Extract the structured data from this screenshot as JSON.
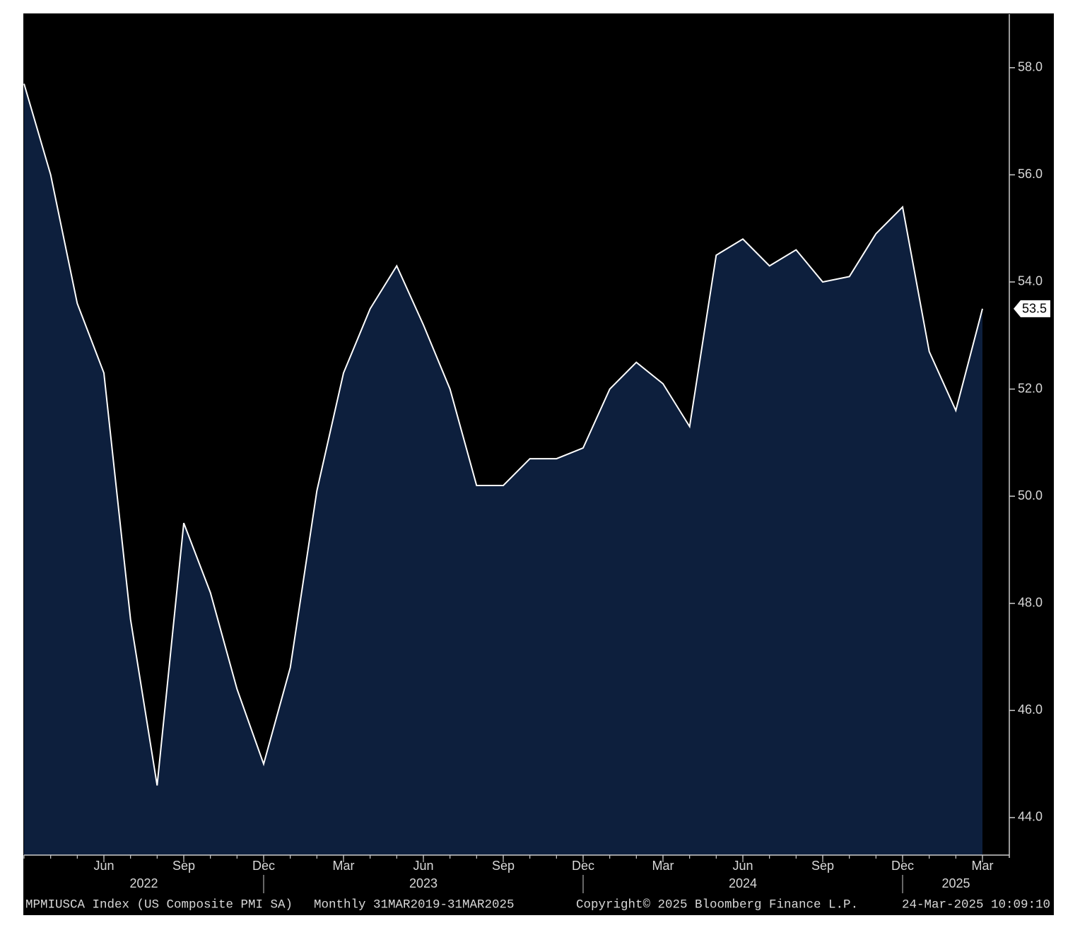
{
  "chart_data": {
    "type": "area",
    "x": [
      "2022-03",
      "2022-04",
      "2022-05",
      "2022-06",
      "2022-07",
      "2022-08",
      "2022-09",
      "2022-10",
      "2022-11",
      "2022-12",
      "2023-01",
      "2023-02",
      "2023-03",
      "2023-04",
      "2023-05",
      "2023-06",
      "2023-07",
      "2023-08",
      "2023-09",
      "2023-10",
      "2023-11",
      "2023-12",
      "2024-01",
      "2024-02",
      "2024-03",
      "2024-04",
      "2024-05",
      "2024-06",
      "2024-07",
      "2024-08",
      "2024-09",
      "2024-10",
      "2024-11",
      "2024-12",
      "2025-01",
      "2025-02",
      "2025-03"
    ],
    "values": [
      57.7,
      56.0,
      53.6,
      52.3,
      47.7,
      44.6,
      49.5,
      48.2,
      46.4,
      45.0,
      46.8,
      50.1,
      52.3,
      53.5,
      54.3,
      53.2,
      52.0,
      50.2,
      50.2,
      50.7,
      50.7,
      50.9,
      52.0,
      52.5,
      52.1,
      51.3,
      54.5,
      54.8,
      54.3,
      54.6,
      54.0,
      54.1,
      54.9,
      55.4,
      52.7,
      51.6,
      53.5
    ],
    "line_color": "#ffffff",
    "fill_color": "#0d1f3d",
    "ylim": [
      43.3,
      59.0
    ],
    "yticks": [
      {
        "value": 44,
        "label": "44.0"
      },
      {
        "value": 46,
        "label": "46.0"
      },
      {
        "value": 48,
        "label": "48.0"
      },
      {
        "value": 50,
        "label": "50.0"
      },
      {
        "value": 52,
        "label": "52.0"
      },
      {
        "value": 54,
        "label": "54.0"
      },
      {
        "value": 56,
        "label": "56.0"
      },
      {
        "value": 58,
        "label": "58.0"
      }
    ],
    "xticks": [
      {
        "value": "2022-06",
        "label": "Jun"
      },
      {
        "value": "2022-09",
        "label": "Sep"
      },
      {
        "value": "2022-12",
        "label": "Dec"
      },
      {
        "value": "2023-03",
        "label": "Mar"
      },
      {
        "value": "2023-06",
        "label": "Jun"
      },
      {
        "value": "2023-09",
        "label": "Sep"
      },
      {
        "value": "2023-12",
        "label": "Dec"
      },
      {
        "value": "2024-03",
        "label": "Mar"
      },
      {
        "value": "2024-06",
        "label": "Jun"
      },
      {
        "value": "2024-09",
        "label": "Sep"
      },
      {
        "value": "2024-12",
        "label": "Dec"
      },
      {
        "value": "2025-03",
        "label": "Mar"
      }
    ],
    "years": [
      "2022",
      "2023",
      "2024",
      "2025"
    ],
    "footer": {
      "ticker": "MPMIUSCA Index (US Composite PMI SA)",
      "range": "Monthly 31MAR2019-31MAR2025",
      "copyright": "Copyright© 2025 Bloomberg Finance L.P.",
      "timestamp": "24-Mar-2025 10:09:10"
    }
  }
}
